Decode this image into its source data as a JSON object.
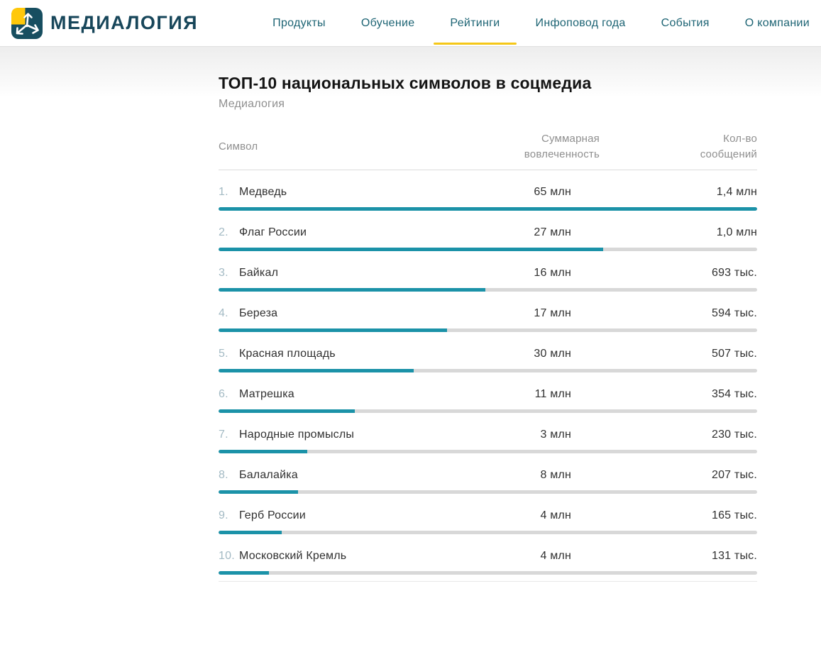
{
  "brand": {
    "name": "МЕДИАЛОГИЯ",
    "logo_colors": {
      "teal": "#174E60",
      "yellow": "#FFC80A",
      "arrows": "#FFFFFF"
    }
  },
  "nav": {
    "items": [
      {
        "id": "products",
        "label": "Продукты",
        "active": false
      },
      {
        "id": "education",
        "label": "Обучение",
        "active": false
      },
      {
        "id": "ratings",
        "label": "Рейтинги",
        "active": true
      },
      {
        "id": "newsbreak",
        "label": "Инфоповод года",
        "active": false
      },
      {
        "id": "events",
        "label": "События",
        "active": false
      },
      {
        "id": "about",
        "label": "О компании",
        "active": false
      }
    ],
    "active_underline_color": "#F5C718"
  },
  "page": {
    "title": "ТОП-10 национальных символов в соцмедиа",
    "subtitle": "Медиалогия"
  },
  "table": {
    "columns": [
      "Символ",
      "Суммарная вовлеченность",
      "Кол-во сообщений"
    ],
    "bar_color": "#1B92A8",
    "track_color": "#D8D8D8",
    "rows": [
      {
        "rank": "1.",
        "symbol": "Медведь",
        "engagement": "65 млн",
        "engagement_mln": 65,
        "messages": "1,4 млн",
        "messages_k": 1400
      },
      {
        "rank": "2.",
        "symbol": "Флаг России",
        "engagement": "27 млн",
        "engagement_mln": 27,
        "messages": "1,0 млн",
        "messages_k": 1000
      },
      {
        "rank": "3.",
        "symbol": "Байкал",
        "engagement": "16 млн",
        "engagement_mln": 16,
        "messages": "693 тыс.",
        "messages_k": 693
      },
      {
        "rank": "4.",
        "symbol": "Береза",
        "engagement": "17 млн",
        "engagement_mln": 17,
        "messages": "594 тыс.",
        "messages_k": 594
      },
      {
        "rank": "5.",
        "symbol": "Красная площадь",
        "engagement": "30 млн",
        "engagement_mln": 30,
        "messages": "507 тыс.",
        "messages_k": 507
      },
      {
        "rank": "6.",
        "symbol": "Матрешка",
        "engagement": "11 млн",
        "engagement_mln": 11,
        "messages": "354 тыс.",
        "messages_k": 354
      },
      {
        "rank": "7.",
        "symbol": "Народные промыслы",
        "engagement": "3 млн",
        "engagement_mln": 3,
        "messages": "230 тыс.",
        "messages_k": 230
      },
      {
        "rank": "8.",
        "symbol": "Балалайка",
        "engagement": "8 млн",
        "engagement_mln": 8,
        "messages": "207 тыс.",
        "messages_k": 207
      },
      {
        "rank": "9.",
        "symbol": "Герб России",
        "engagement": "4 млн",
        "engagement_mln": 4,
        "messages": "165 тыс.",
        "messages_k": 165
      },
      {
        "rank": "10.",
        "symbol": "Московский Кремль",
        "engagement": "4 млн",
        "engagement_mln": 4,
        "messages": "131 тыс.",
        "messages_k": 131
      }
    ]
  },
  "chart_data": {
    "type": "bar",
    "title": "ТОП-10 национальных символов в соцмедиа",
    "categories": [
      "Медведь",
      "Флаг России",
      "Байкал",
      "Береза",
      "Красная площадь",
      "Матрешка",
      "Народные промыслы",
      "Балалайка",
      "Герб России",
      "Московский Кремль"
    ],
    "series": [
      {
        "name": "Суммарная вовлеченность, млн",
        "values": [
          65,
          27,
          16,
          17,
          30,
          11,
          3,
          8,
          4,
          4
        ]
      },
      {
        "name": "Кол-во сообщений, тыс.",
        "values": [
          1400,
          1000,
          693,
          594,
          507,
          354,
          230,
          207,
          165,
          131
        ]
      }
    ],
    "bar_metric": "Кол-во сообщений",
    "bar_range_k": [
      0,
      1400
    ],
    "legend_position": "none",
    "grid": false
  }
}
